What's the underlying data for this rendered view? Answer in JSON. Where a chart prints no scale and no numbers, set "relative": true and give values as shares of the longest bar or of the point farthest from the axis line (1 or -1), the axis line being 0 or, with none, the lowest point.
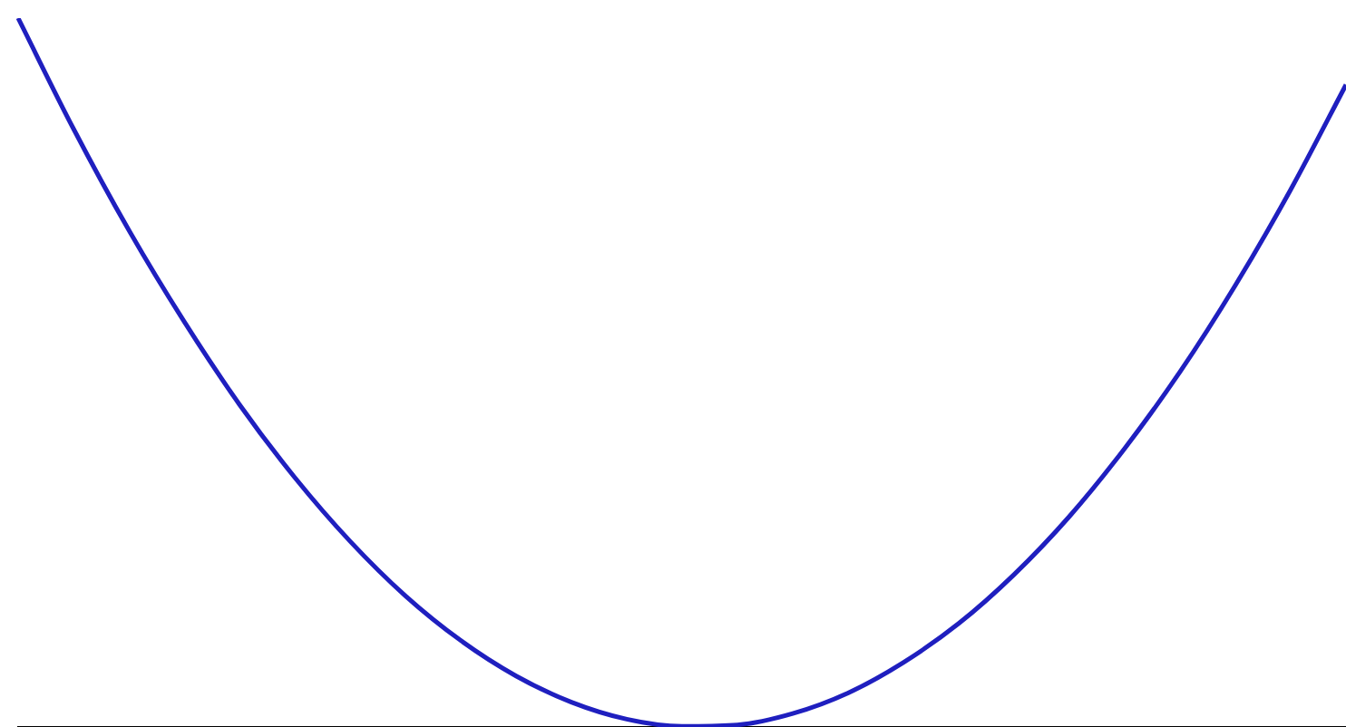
{
  "chart_data": {
    "type": "line",
    "relative": true,
    "tick_labels": false,
    "grid": false,
    "legend": false,
    "categories": [
      null,
      null,
      null,
      null,
      null,
      null,
      null,
      null,
      null,
      null,
      null,
      null,
      null,
      null,
      null,
      null,
      null,
      null,
      null,
      null,
      null,
      null,
      null,
      null,
      null
    ],
    "color": "#1f1fbf",
    "values": [
      1,
      0.844,
      0.701,
      0.572,
      0.455,
      0.352,
      0.262,
      0.185,
      0.122,
      0.072,
      0.035,
      0.011,
      0.001,
      0.003,
      0.019,
      0.048,
      0.091,
      0.146,
      0.215,
      0.297,
      0.393,
      0.501,
      0.623,
      0.758,
      0.906
    ]
  }
}
